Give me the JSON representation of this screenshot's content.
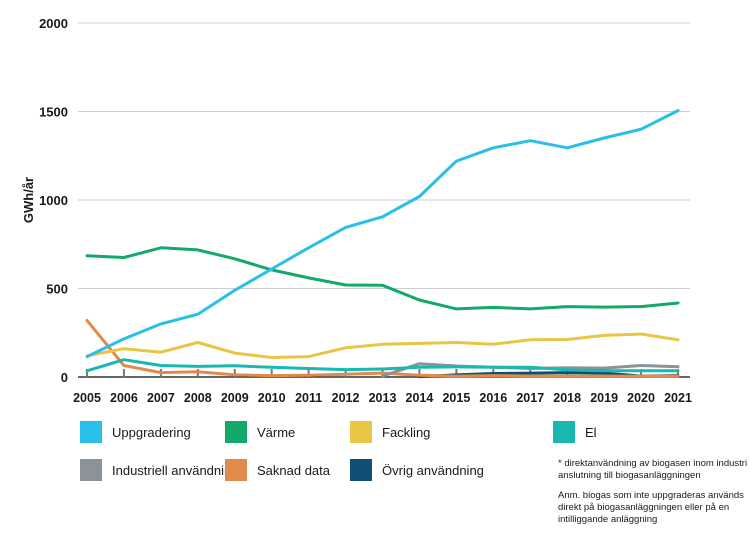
{
  "chart_data": {
    "type": "line",
    "ylabel": "GWh/år",
    "xlabel": "",
    "title": "",
    "ylim": [
      0,
      2000
    ],
    "yticks": [
      0,
      500,
      1000,
      1500,
      2000
    ],
    "grid": "horizontal",
    "x": [
      "2005",
      "2006",
      "2007",
      "2008",
      "2009",
      "2010",
      "2011",
      "2012",
      "2013",
      "2014",
      "2015",
      "2016",
      "2017",
      "2018",
      "2019",
      "2020",
      "2021"
    ],
    "series": [
      {
        "name": "Uppgradering",
        "color": "#29bfe8",
        "values": [
          115,
          215,
          300,
          355,
          490,
          610,
          730,
          845,
          905,
          1020,
          1220,
          1295,
          1335,
          1295,
          1350,
          1400,
          1505
        ]
      },
      {
        "name": "Värme",
        "color": "#13a96b",
        "values": [
          685,
          675,
          730,
          718,
          668,
          605,
          560,
          520,
          518,
          435,
          385,
          393,
          385,
          398,
          395,
          398,
          418
        ]
      },
      {
        "name": "Fackling",
        "color": "#e8c544",
        "values": [
          120,
          160,
          140,
          195,
          135,
          110,
          115,
          165,
          185,
          190,
          195,
          185,
          210,
          212,
          235,
          243,
          210
        ]
      },
      {
        "name": "El",
        "color": "#19b8b0",
        "values": [
          35,
          98,
          65,
          60,
          63,
          55,
          48,
          42,
          45,
          55,
          57,
          55,
          55,
          40,
          35,
          35,
          35
        ]
      },
      {
        "name": "Industriell användning*",
        "color": "#8a9399",
        "values": [
          null,
          null,
          null,
          null,
          null,
          null,
          null,
          null,
          5,
          75,
          62,
          55,
          48,
          52,
          50,
          65,
          58
        ]
      },
      {
        "name": "Saknad data",
        "color": "#e08a4c",
        "values": [
          320,
          65,
          25,
          30,
          12,
          8,
          10,
          15,
          22,
          10,
          5,
          8,
          5,
          5,
          5,
          5,
          5
        ]
      },
      {
        "name": "Övrig användning",
        "color": "#0f4f73",
        "values": [
          null,
          null,
          null,
          null,
          null,
          null,
          null,
          null,
          null,
          2,
          12,
          20,
          22,
          25,
          22,
          5,
          8
        ]
      }
    ],
    "legend_position": "bottom"
  },
  "notes": {
    "footnote": "* direktanvändning av biogasen inom industri i anslutning till biogasanläggningen",
    "remark": "Anm. biogas som inte uppgraderas används direkt på biogasanläggningen eller på en intilliggande anläggning"
  }
}
